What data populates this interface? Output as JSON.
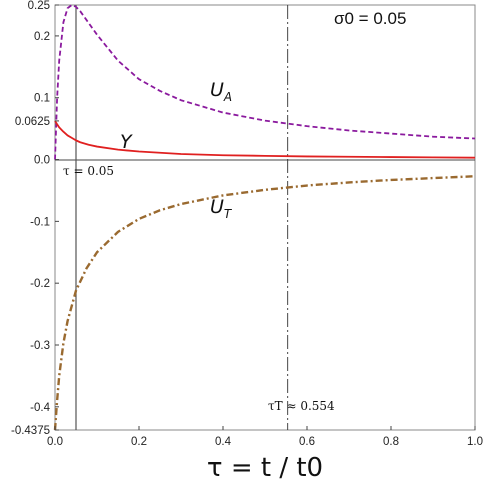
{
  "chart_data": {
    "type": "line",
    "title": "",
    "xlabel": "τ = t / t0",
    "ylabel": "",
    "xlim": [
      0,
      1.0
    ],
    "ylim": [
      -0.4375,
      0.25
    ],
    "x_ticks": [
      {
        "value": 0,
        "label": "0.0"
      },
      {
        "value": 0.2,
        "label": "0.2"
      },
      {
        "value": 0.4,
        "label": "0.4"
      },
      {
        "value": 0.6,
        "label": "0.6"
      },
      {
        "value": 0.8,
        "label": "0.8"
      },
      {
        "value": 1.0,
        "label": "1.0"
      }
    ],
    "y_ticks": [
      {
        "value": 0.25,
        "label": "0.25"
      },
      {
        "value": 0.2,
        "label": "0.2"
      },
      {
        "value": 0.1,
        "label": "0.1"
      },
      {
        "value": 0.0625,
        "label": "0.0625"
      },
      {
        "value": 0.0,
        "label": "0.0"
      },
      {
        "value": -0.1,
        "label": "-0.1"
      },
      {
        "value": -0.2,
        "label": "-0.2"
      },
      {
        "value": -0.3,
        "label": "-0.3"
      },
      {
        "value": -0.4,
        "label": "-0.4"
      },
      {
        "value": -0.4375,
        "label": "-0.4375"
      }
    ],
    "grid": false,
    "annotations": {
      "sigma_text": "σ0 = 0.05",
      "tau_peak_text": "τ = 0.05",
      "tau_T_text": "τT ≈ 0.554"
    },
    "vlines": [
      0.05,
      0.554
    ],
    "series": [
      {
        "name": "UA",
        "color": "#8b1a9e",
        "style": "dashed",
        "x": [
          0.0,
          0.005,
          0.01,
          0.02,
          0.03,
          0.04,
          0.05,
          0.06,
          0.08,
          0.1,
          0.15,
          0.2,
          0.25,
          0.3,
          0.4,
          0.5,
          0.6,
          0.7,
          0.8,
          0.9,
          1.0
        ],
        "y": [
          0.0,
          0.099,
          0.16,
          0.222,
          0.245,
          0.25,
          0.247,
          0.24,
          0.221,
          0.202,
          0.16,
          0.13,
          0.111,
          0.096,
          0.076,
          0.063,
          0.054,
          0.047,
          0.042,
          0.037,
          0.034
        ]
      },
      {
        "name": "Y",
        "color": "#e02020",
        "style": "solid",
        "x": [
          0.0,
          0.005,
          0.01,
          0.02,
          0.03,
          0.04,
          0.05,
          0.06,
          0.08,
          0.1,
          0.15,
          0.2,
          0.25,
          0.3,
          0.4,
          0.5,
          0.6,
          0.7,
          0.8,
          0.9,
          1.0
        ],
        "y": [
          0.0625,
          0.057,
          0.052,
          0.045,
          0.039,
          0.035,
          0.031,
          0.028,
          0.024,
          0.021,
          0.016,
          0.013,
          0.011,
          0.009,
          0.007,
          0.006,
          0.005,
          0.0045,
          0.004,
          0.0035,
          0.003
        ]
      },
      {
        "name": "UT",
        "color": "#9a6a30",
        "style": "dashdot",
        "x": [
          0.0,
          0.005,
          0.01,
          0.02,
          0.03,
          0.05,
          0.075,
          0.1,
          0.15,
          0.2,
          0.25,
          0.3,
          0.4,
          0.5,
          0.6,
          0.7,
          0.8,
          0.9,
          1.0
        ],
        "y": [
          -0.4375,
          -0.39,
          -0.35,
          -0.297,
          -0.261,
          -0.212,
          -0.176,
          -0.15,
          -0.117,
          -0.096,
          -0.082,
          -0.072,
          -0.058,
          -0.049,
          -0.042,
          -0.037,
          -0.033,
          -0.03,
          -0.027
        ]
      }
    ],
    "series_labels": {
      "UA": {
        "main": "U",
        "sub": "A"
      },
      "Y": {
        "main": "Y",
        "sub": ""
      },
      "UT": {
        "main": "U",
        "sub": "T"
      }
    }
  }
}
